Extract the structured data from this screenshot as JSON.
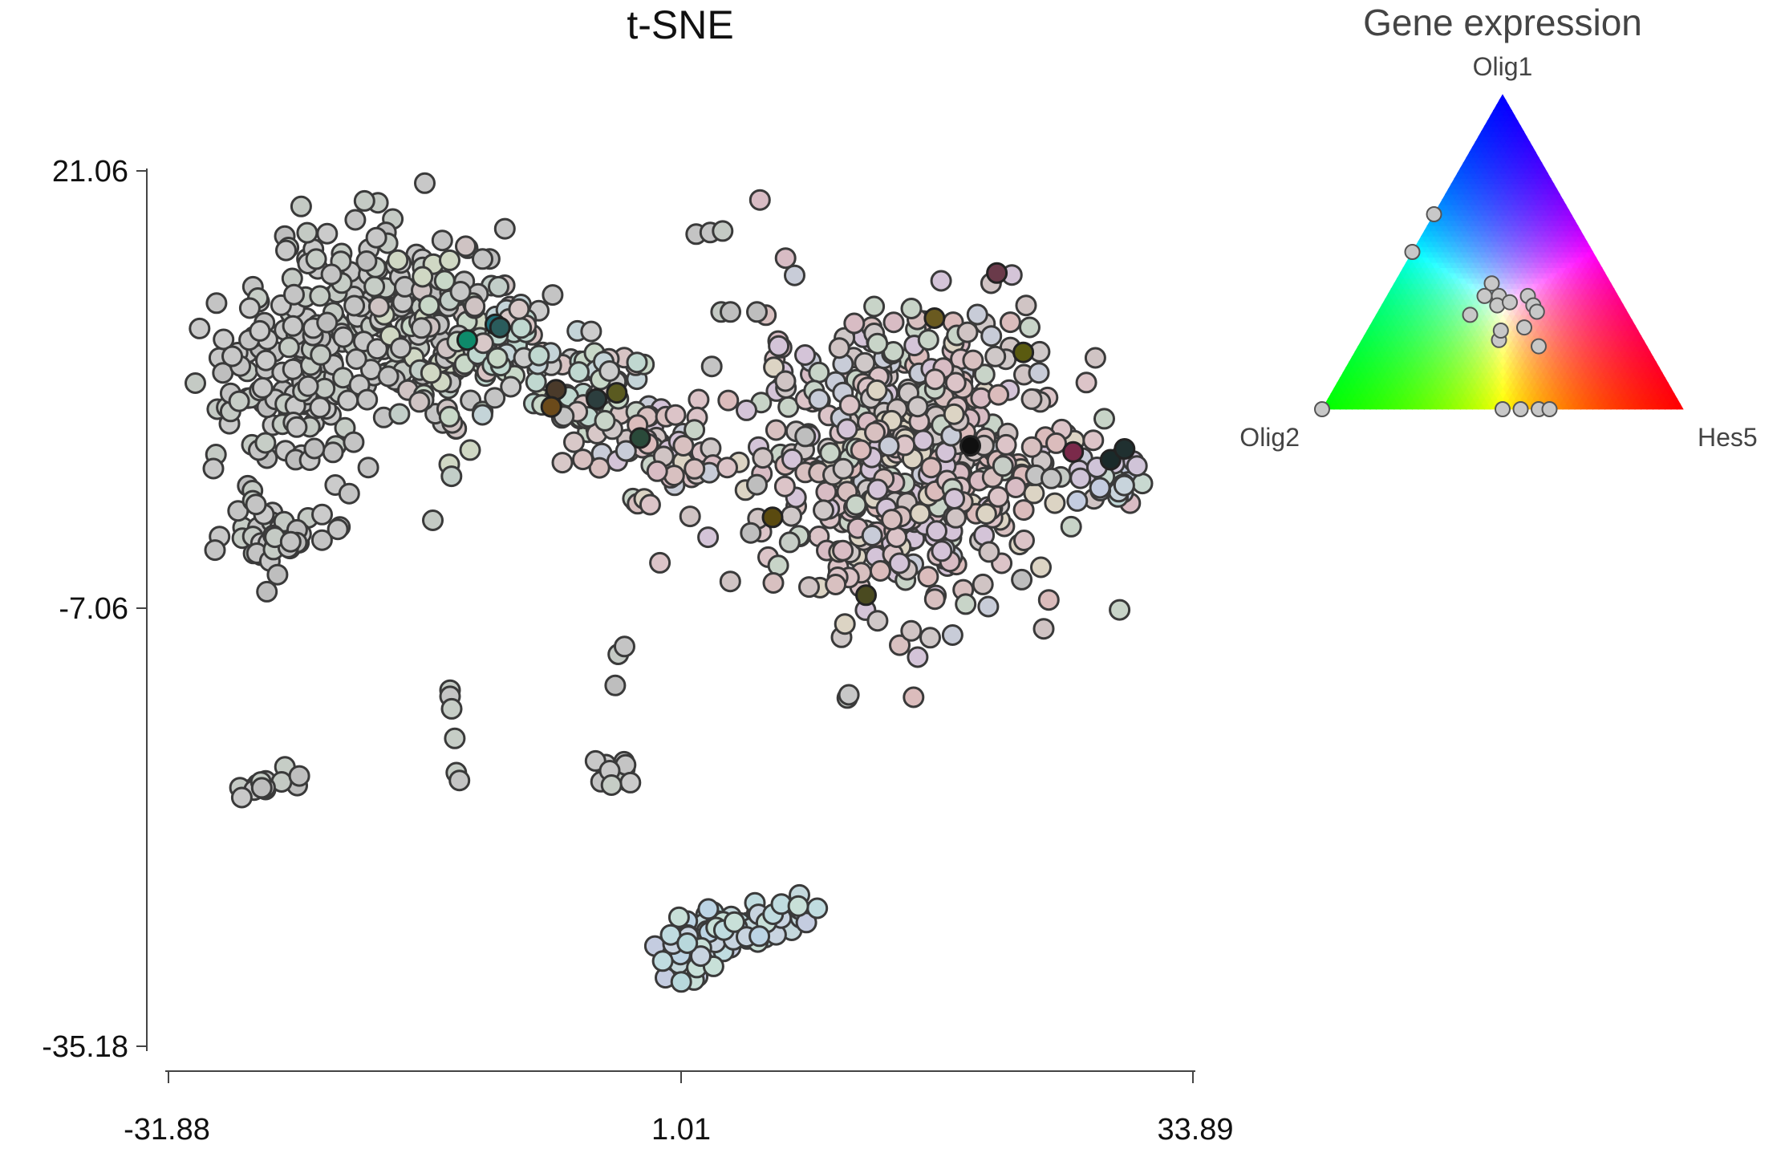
{
  "chart_data": [
    {
      "type": "scatter",
      "title": "t-SNE",
      "xlabel": "",
      "ylabel": "",
      "xlim": [
        -31.88,
        33.89
      ],
      "ylim": [
        -35.18,
        21.06
      ],
      "x_ticks": [
        "-31.88",
        "1.01",
        "33.89"
      ],
      "y_ticks": [
        "21.06",
        "-7.06",
        "-35.18"
      ],
      "grid": false,
      "clusters": [
        {
          "name": "left-mass-A",
          "cx": -24.3,
          "cy": 7.5,
          "sx": 2.6,
          "sy": 3.6,
          "n": 120,
          "palette": "grey"
        },
        {
          "name": "left-mass-B",
          "cx": -19.2,
          "cy": 11.8,
          "sx": 3.2,
          "sy": 3.6,
          "n": 150,
          "palette": "grey"
        },
        {
          "name": "left-mass-C",
          "cx": -14.2,
          "cy": 10.0,
          "sx": 2.4,
          "sy": 3.2,
          "n": 90,
          "palette": "greymix"
        },
        {
          "name": "left-lower",
          "cx": -25.0,
          "cy": -2.2,
          "sx": 1.6,
          "sy": 1.2,
          "n": 45,
          "palette": "grey"
        },
        {
          "name": "bridge-1",
          "cx": -9.6,
          "cy": 9.6,
          "sx": 1.8,
          "sy": 1.4,
          "n": 45,
          "palette": "mix"
        },
        {
          "name": "bridge-2",
          "cx": -4.8,
          "cy": 6.4,
          "sx": 1.8,
          "sy": 1.6,
          "n": 50,
          "palette": "mix"
        },
        {
          "name": "bridge-3",
          "cx": -0.5,
          "cy": 3.0,
          "sx": 2.0,
          "sy": 1.6,
          "n": 60,
          "palette": "pink"
        },
        {
          "name": "right-mass",
          "cx": 15.6,
          "cy": 2.8,
          "sx": 4.8,
          "sy": 4.6,
          "n": 520,
          "palette": "pink"
        },
        {
          "name": "right-edge",
          "cx": 28.6,
          "cy": 1.4,
          "sx": 1.0,
          "sy": 0.9,
          "n": 30,
          "palette": "bluemix"
        },
        {
          "name": "bottom-cluster",
          "cx": 4.0,
          "cy": -28.0,
          "sx": 2.4,
          "sy": 0.9,
          "n": 80,
          "palette": "lightblue"
        },
        {
          "name": "small-left",
          "cx": -25.8,
          "cy": -18.6,
          "sx": 1.0,
          "sy": 0.35,
          "n": 14,
          "palette": "grey"
        },
        {
          "name": "small-center",
          "cx": -3.4,
          "cy": -17.5,
          "sx": 0.7,
          "sy": 0.45,
          "n": 16,
          "palette": "grey"
        }
      ],
      "points": [
        {
          "x": 2.0,
          "y": 17.0
        },
        {
          "x": 2.9,
          "y": 17.1
        },
        {
          "x": 3.7,
          "y": 17.2
        },
        {
          "x": 3.6,
          "y": 12.0
        },
        {
          "x": 4.2,
          "y": 12.0
        },
        {
          "x": 5.9,
          "y": 12.0
        },
        {
          "x": 3.0,
          "y": 8.5
        },
        {
          "x": -13.8,
          "y": -12.3
        },
        {
          "x": -13.8,
          "y": -12.7
        },
        {
          "x": -13.7,
          "y": -13.5
        },
        {
          "x": -13.5,
          "y": -15.4
        },
        {
          "x": -13.4,
          "y": -17.6
        },
        {
          "x": -13.2,
          "y": -18.1
        },
        {
          "x": -3.0,
          "y": -10.0
        },
        {
          "x": -2.6,
          "y": -9.5
        },
        {
          "x": -3.2,
          "y": -12.0
        },
        {
          "x": 11.7,
          "y": -12.8
        },
        {
          "x": 11.8,
          "y": -12.6
        },
        {
          "x": -6.5,
          "y": 5.3
        },
        {
          "x": 5.9,
          "y": 0.9
        },
        {
          "x": 9.0,
          "y": 4.0
        },
        {
          "x": 21.7,
          "y": 2.1
        },
        {
          "x": 25.4,
          "y": 1.4
        },
        {
          "x": 23.8,
          "y": 1.5
        },
        {
          "x": 24.8,
          "y": 1.3
        },
        {
          "x": 22.9,
          "y": -5.2
        },
        {
          "x": 8.0,
          "y": -2.8
        },
        {
          "x": 5.5,
          "y": -2.2
        }
      ],
      "highlight_points": [
        {
          "x": -10.9,
          "y": 11.2,
          "color": "#1e6f7a"
        },
        {
          "x": -10.6,
          "y": 11.0,
          "color": "#2a5c5c"
        },
        {
          "x": -12.7,
          "y": 10.2,
          "color": "#0e8a6a"
        },
        {
          "x": -7.0,
          "y": 7.0,
          "color": "#4a3a2a"
        },
        {
          "x": -7.3,
          "y": 5.9,
          "color": "#6b4a1a"
        },
        {
          "x": -4.4,
          "y": 6.4,
          "color": "#2c3e3e"
        },
        {
          "x": -3.1,
          "y": 6.8,
          "color": "#5a5a20"
        },
        {
          "x": -1.6,
          "y": 3.9,
          "color": "#2a4a3a"
        },
        {
          "x": 21.3,
          "y": 14.5,
          "color": "#6a3a4a"
        },
        {
          "x": 23.0,
          "y": 9.4,
          "color": "#5a5a10"
        },
        {
          "x": 19.6,
          "y": 3.4,
          "color": "#101010"
        },
        {
          "x": 17.3,
          "y": 11.6,
          "color": "#6a5a20"
        },
        {
          "x": 26.2,
          "y": 3.0,
          "color": "#7a2a4a"
        },
        {
          "x": 28.6,
          "y": 2.5,
          "color": "#1a2a2a"
        },
        {
          "x": 29.5,
          "y": 3.2,
          "color": "#203030"
        },
        {
          "x": 6.9,
          "y": -1.2,
          "color": "#5a4a10"
        },
        {
          "x": 12.9,
          "y": -6.2,
          "color": "#4a4a20"
        }
      ],
      "colors": {
        "grey": [
          "#c4c4c4",
          "#c8c8c8",
          "#bebebe",
          "#cbcbcb",
          "#c6cdc6",
          "#c4cac4"
        ],
        "greymix": [
          "#c4c4c4",
          "#c8d8c8",
          "#d0d8c4",
          "#c6c6c6",
          "#cfc3c3",
          "#c2cec8"
        ],
        "mix": [
          "#c8d8c8",
          "#d8c8c8",
          "#c4d4d8",
          "#cccccc",
          "#d8c4c4",
          "#c0d8d0"
        ],
        "pink": [
          "#dbbcbc",
          "#d8c0c0",
          "#d0c4c4",
          "#dcc4c8",
          "#d8bcc4",
          "#cfc8c8",
          "#c8ccd8",
          "#dcd4c4",
          "#d4c4d8",
          "#c8d4c8"
        ],
        "bluemix": [
          "#c8d4dc",
          "#c4cce0",
          "#c8d8d0",
          "#d0c4d8",
          "#c0d8d8"
        ],
        "lightblue": [
          "#c0dce0",
          "#c4d8dc",
          "#b8d8dc",
          "#c8d4e0",
          "#bcd4e4",
          "#c4cce0",
          "#c8e0d8"
        ]
      }
    },
    {
      "type": "ternary",
      "title": "Gene expression",
      "vertices": [
        "Olig1",
        "Olig2",
        "Hes5"
      ],
      "vertex_colors": {
        "Olig1": "#2222ff",
        "Olig2": "#11ee11",
        "Hes5": "#ff1a1a"
      },
      "points": [
        {
          "Olig1": 0.62,
          "Olig2": 0.38,
          "Hes5": 0.0
        },
        {
          "Olig1": 0.5,
          "Olig2": 0.5,
          "Hes5": 0.0
        },
        {
          "Olig1": 0.0,
          "Olig2": 1.0,
          "Hes5": 0.0
        },
        {
          "Olig1": 0.36,
          "Olig2": 0.37,
          "Hes5": 0.27
        },
        {
          "Olig1": 0.4,
          "Olig2": 0.33,
          "Hes5": 0.27
        },
        {
          "Olig1": 0.36,
          "Olig2": 0.33,
          "Hes5": 0.31
        },
        {
          "Olig1": 0.33,
          "Olig2": 0.35,
          "Hes5": 0.32
        },
        {
          "Olig1": 0.34,
          "Olig2": 0.31,
          "Hes5": 0.35
        },
        {
          "Olig1": 0.36,
          "Olig2": 0.25,
          "Hes5": 0.39
        },
        {
          "Olig1": 0.33,
          "Olig2": 0.25,
          "Hes5": 0.42
        },
        {
          "Olig1": 0.31,
          "Olig2": 0.25,
          "Hes5": 0.44
        },
        {
          "Olig1": 0.3,
          "Olig2": 0.44,
          "Hes5": 0.26
        },
        {
          "Olig1": 0.22,
          "Olig2": 0.4,
          "Hes5": 0.38
        },
        {
          "Olig1": 0.26,
          "Olig2": 0.31,
          "Hes5": 0.43
        },
        {
          "Olig1": 0.2,
          "Olig2": 0.3,
          "Hes5": 0.5
        },
        {
          "Olig1": 0.25,
          "Olig2": 0.38,
          "Hes5": 0.37
        },
        {
          "Olig1": 0.0,
          "Olig2": 0.5,
          "Hes5": 0.5
        },
        {
          "Olig1": 0.0,
          "Olig2": 0.45,
          "Hes5": 0.55
        },
        {
          "Olig1": 0.0,
          "Olig2": 0.4,
          "Hes5": 0.6
        },
        {
          "Olig1": 0.0,
          "Olig2": 0.37,
          "Hes5": 0.63
        }
      ]
    }
  ]
}
